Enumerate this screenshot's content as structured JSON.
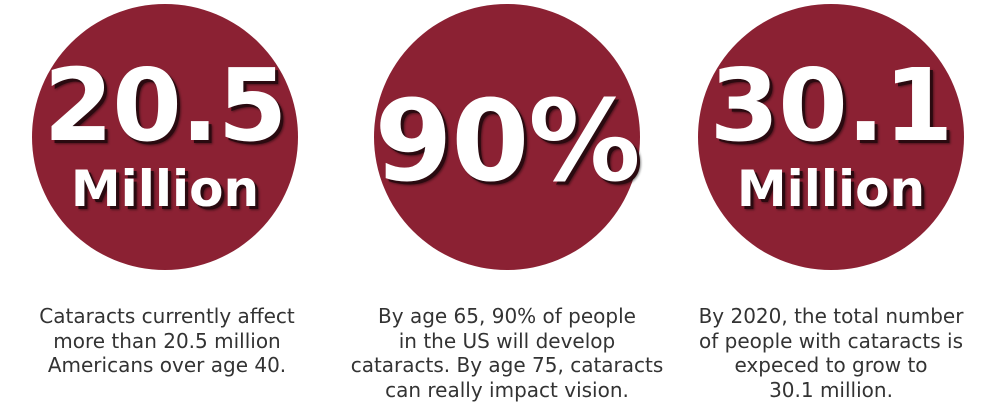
{
  "colors": {
    "circle": "#8b2133",
    "numeral_text": "#ffffff",
    "caption_text": "#333333"
  },
  "stats": [
    {
      "value": "20.5",
      "unit": "Million",
      "caption": "Cataracts currently affect\nmore than 20.5 million\nAmericans over age 40."
    },
    {
      "value": "90%",
      "unit": "",
      "caption": "By age 65, 90% of people\nin the US will develop\ncataracts. By age 75, cataracts\ncan really impact vision."
    },
    {
      "value": "30.1",
      "unit": "Million",
      "caption": "By 2020, the total number\nof people with cataracts is\nexpeced to grow to\n30.1 million."
    }
  ]
}
